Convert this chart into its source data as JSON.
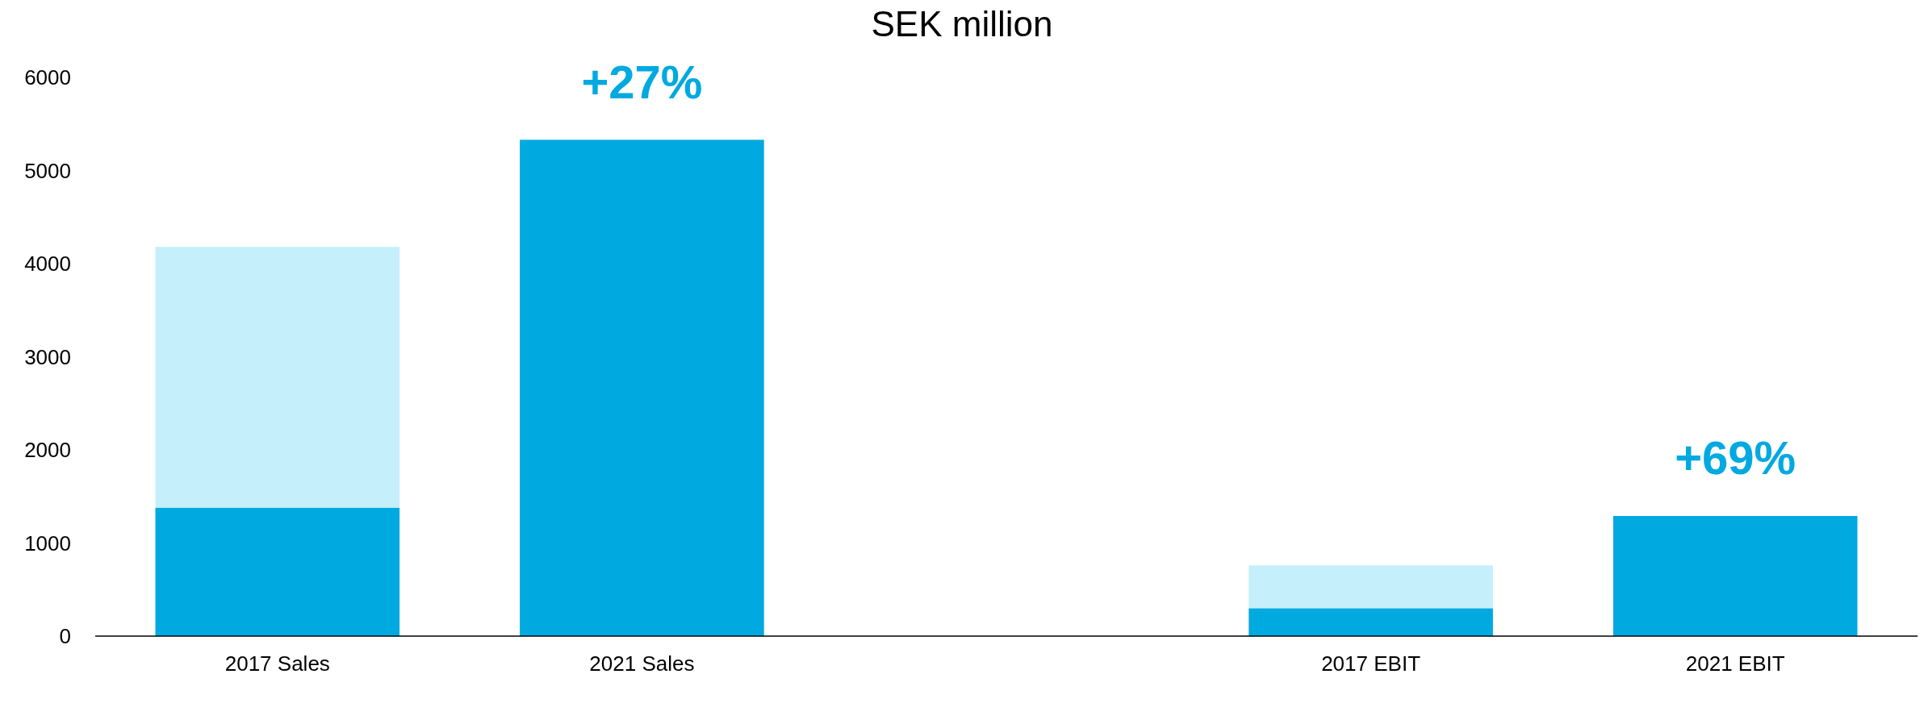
{
  "chart_data": {
    "type": "bar",
    "title": "SEK million",
    "stacked": true,
    "categories": [
      "2017 Sales",
      "2021 Sales",
      null,
      "2017 EBIT",
      "2021 EBIT"
    ],
    "series": [
      {
        "color": "#00a9e0",
        "values": [
          1380,
          5330,
          null,
          300,
          1290
        ]
      },
      {
        "color": "#c6effc",
        "values": [
          2800,
          null,
          null,
          460,
          null
        ]
      }
    ],
    "ylim": [
      0,
      6000
    ],
    "yticks": [
      0,
      1000,
      2000,
      3000,
      4000,
      5000,
      6000
    ],
    "annotations": [
      "+27%",
      "+69%"
    ],
    "grid": false,
    "legend": false
  }
}
